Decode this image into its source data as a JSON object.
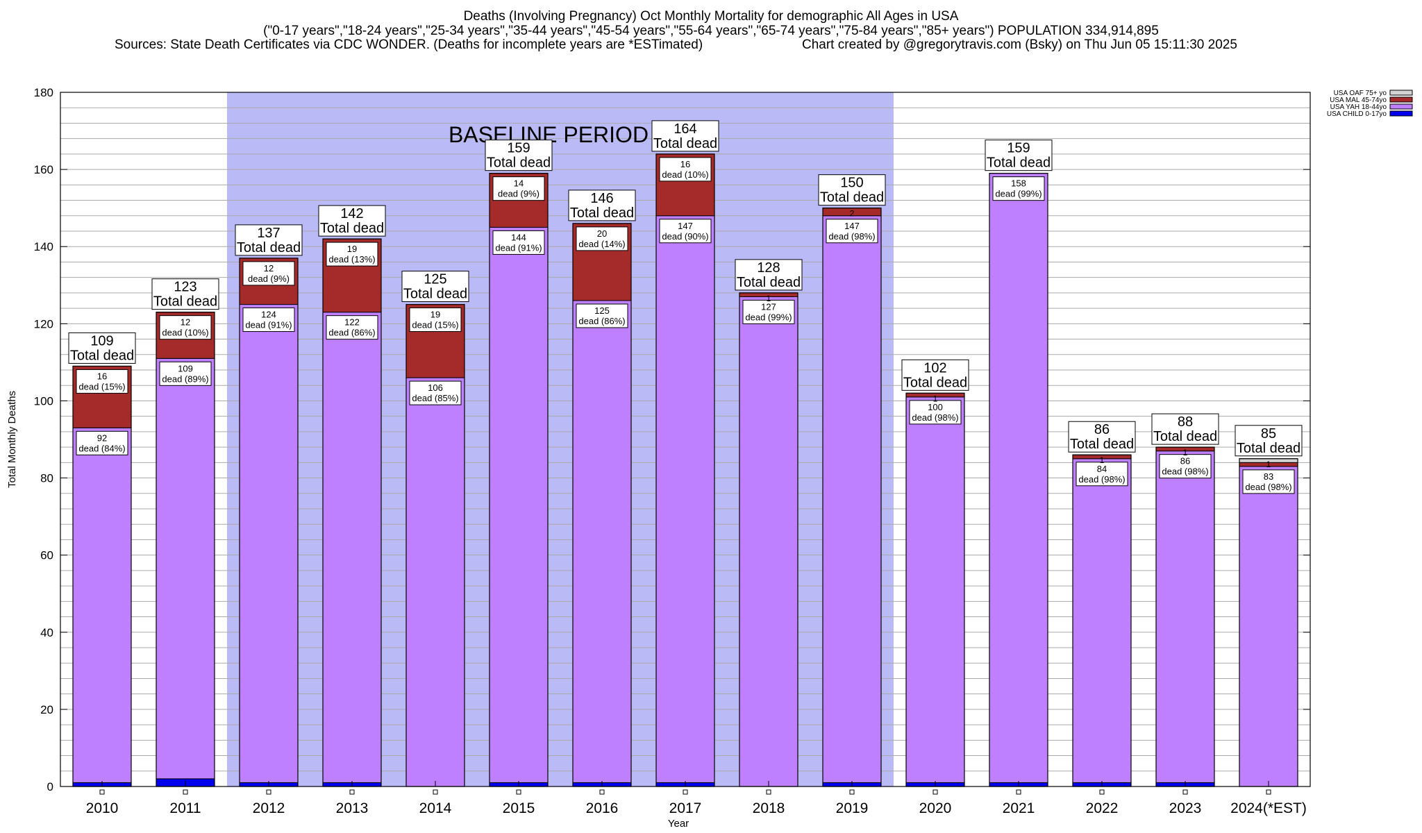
{
  "header": {
    "title": "Deaths (Involving Pregnancy) Oct Monthly Mortality for demographic All Ages in USA",
    "subtitle": "(\"0-17 years\",\"18-24 years\",\"25-34 years\",\"35-44 years\",\"45-54 years\",\"55-64 years\",\"65-74 years\",\"75-84 years\",\"85+ years\") POPULATION 334,914,895",
    "sources": "Sources: State Death Certificates via CDC WONDER. (Deaths for incomplete years are *ESTimated)",
    "credit": "Chart created by @gregorytravis.com (Bsky) on Thu Jun 05 15:11:30 2025"
  },
  "colors": {
    "child": "#0000ee",
    "yah": "#bf80ff",
    "mal": "#a52a2a",
    "oaf": "#d3d3d3",
    "baseline": "#babaf7",
    "grid": "#aaaaaa"
  },
  "chart_data": {
    "type": "bar",
    "stacked": true,
    "xlabel": "Year",
    "ylabel": "Total Monthly Deaths",
    "ylim": [
      0,
      180
    ],
    "yticks": [
      0,
      20,
      40,
      60,
      80,
      100,
      120,
      140,
      160,
      180
    ],
    "grid": true,
    "legend_position": "top-right",
    "annotation": "BASELINE PERIOD",
    "baseline_range": [
      "2012",
      "2019"
    ],
    "total_suffix": "Total dead",
    "categories": [
      "2010",
      "2011",
      "2012",
      "2013",
      "2014",
      "2015",
      "2016",
      "2017",
      "2018",
      "2019",
      "2020",
      "2021",
      "2022",
      "2023",
      "2024(*EST)"
    ],
    "totals": [
      109,
      123,
      137,
      142,
      125,
      159,
      146,
      164,
      128,
      150,
      102,
      159,
      86,
      88,
      85
    ],
    "series": [
      {
        "name": "USA CHILD 0-17yo",
        "key": "child",
        "values": [
          1,
          2,
          1,
          1,
          0,
          1,
          1,
          1,
          0,
          1,
          1,
          1,
          1,
          1,
          0
        ],
        "labels": [
          null,
          null,
          null,
          null,
          null,
          null,
          null,
          null,
          null,
          null,
          null,
          null,
          null,
          null,
          null
        ]
      },
      {
        "name": "USA YAH 18-44yo",
        "key": "yah",
        "values": [
          92,
          109,
          124,
          122,
          106,
          144,
          125,
          147,
          127,
          147,
          100,
          158,
          84,
          86,
          83
        ],
        "labels": [
          "dead (84%)",
          "dead (89%)",
          "dead (91%)",
          "dead (86%)",
          "dead (85%)",
          "dead (91%)",
          "dead (86%)",
          "dead (90%)",
          "dead (99%)",
          "dead (98%)",
          "dead (98%)",
          "dead (99%)",
          "dead (98%)",
          "dead (98%)",
          "dead (98%)"
        ]
      },
      {
        "name": "USA MAL 45-74yo",
        "key": "mal",
        "values": [
          16,
          12,
          12,
          19,
          19,
          14,
          20,
          16,
          1,
          2,
          1,
          0,
          1,
          1,
          1
        ],
        "labels": [
          "dead (15%)",
          "dead (10%)",
          "dead (9%)",
          "dead (13%)",
          "dead (15%)",
          "dead (9%)",
          "dead (14%)",
          "dead (10%)",
          null,
          null,
          null,
          null,
          null,
          null,
          null
        ]
      },
      {
        "name": "USA OAF 75+ yo",
        "key": "oaf",
        "values": [
          0,
          0,
          0,
          0,
          0,
          0,
          0,
          0,
          0,
          0,
          0,
          0,
          0,
          0,
          1
        ],
        "labels": [
          null,
          null,
          null,
          null,
          null,
          null,
          null,
          null,
          null,
          null,
          null,
          null,
          null,
          null,
          null
        ]
      }
    ]
  }
}
